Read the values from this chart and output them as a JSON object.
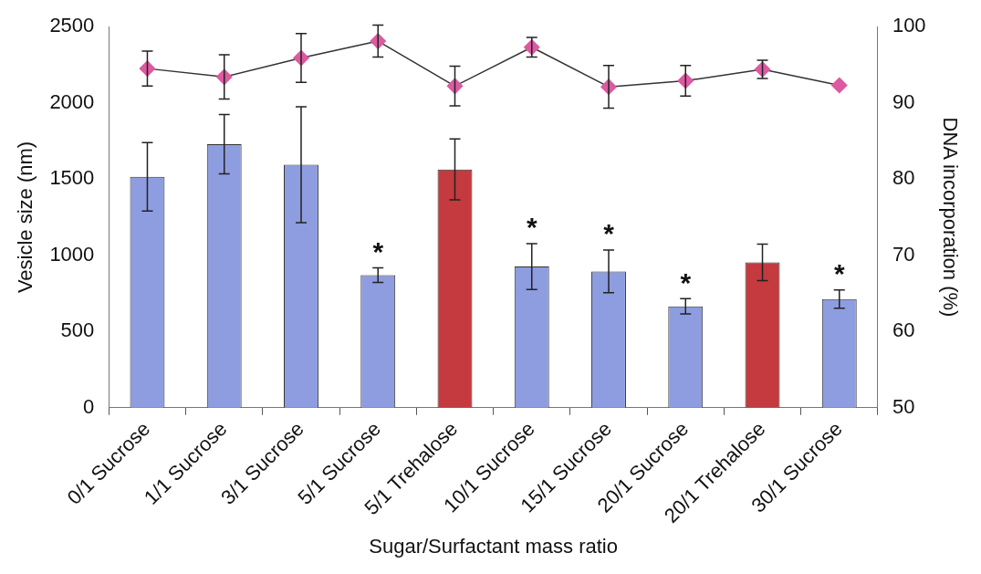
{
  "chart_data": {
    "type": "bar",
    "xlabel": "Sugar/Surfactant mass ratio",
    "ylabel": "Vesicle size (nm)",
    "y2label": "DNA incorporation (%)",
    "categories": [
      "0/1 Sucrose",
      "1/1 Sucrose",
      "3/1 Sucrose",
      "5/1 Sucrose",
      "5/1 Trehalose",
      "10/1 Sucrose",
      "15/1 Sucrose",
      "20/1 Sucrose",
      "20/1 Trehalose",
      "30/1 Sucrose"
    ],
    "series": [
      {
        "colors": [
          "#8e9ddf",
          "#8e9ddf",
          "#8e9ddf",
          "#8e9ddf",
          "#c43a3e",
          "#8e9ddf",
          "#8e9ddf",
          "#8e9ddf",
          "#c43a3e",
          "#8e9ddf"
        ],
        "values": [
          1515,
          1729,
          1594,
          870,
          1563,
          926,
          894,
          665,
          953,
          712
        ],
        "errors": [
          225,
          195,
          380,
          48,
          200,
          150,
          140,
          50,
          120,
          60
        ]
      },
      {
        "type": "line",
        "axis": "y2",
        "color": "#dc5aa0",
        "values": [
          94.5,
          93.4,
          95.9,
          98.1,
          92.2,
          97.3,
          92.1,
          92.9,
          94.4,
          92.3
        ],
        "errors": [
          2.3,
          2.9,
          3.2,
          2.1,
          2.6,
          1.3,
          2.8,
          2.0,
          1.2,
          null
        ]
      }
    ],
    "marker": "diamond",
    "grid": false,
    "legend": false,
    "ylim": [
      0,
      2500
    ],
    "yticks": [
      0,
      500,
      1000,
      1500,
      2000,
      2500
    ],
    "y2lim": [
      50,
      100
    ],
    "y2ticks": [
      50,
      60,
      70,
      80,
      90,
      100
    ],
    "annotations": [
      {
        "text": "*",
        "x": "5/1 Sucrose",
        "y": 870
      },
      {
        "text": "*",
        "x": "10/1 Sucrose",
        "y": 926
      },
      {
        "text": "*",
        "x": "15/1 Sucrose",
        "y": 894
      },
      {
        "text": "*",
        "x": "20/1 Sucrose",
        "y": 665
      },
      {
        "text": "*",
        "x": "30/1 Sucrose",
        "y": 712
      }
    ]
  }
}
